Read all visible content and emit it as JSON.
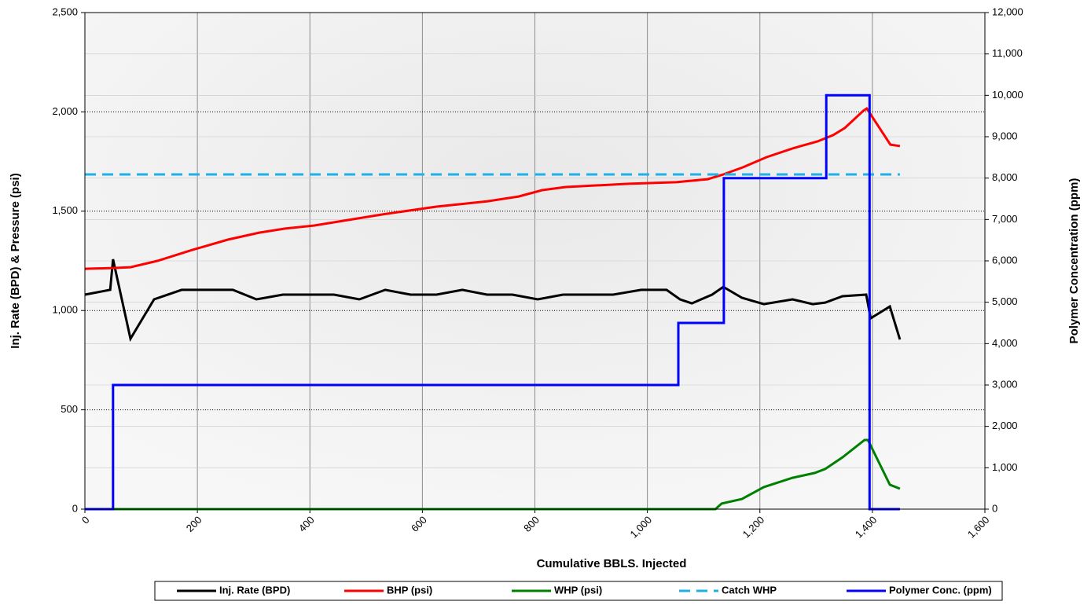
{
  "chart_data": {
    "type": "line",
    "xlabel": "Cumulative BBLS. Injected",
    "ylabel": "Inj. Rate (BPD) & Pressure (psi)",
    "y2label": "Polymer Concentration (ppm)",
    "xlim": [
      0,
      1600
    ],
    "xticks": [
      0,
      200,
      400,
      600,
      800,
      {
        "value": 1000,
        "label": "1,000"
      },
      {
        "value": 1200,
        "label": "1,200"
      },
      {
        "value": 1400,
        "label": "1,400"
      },
      {
        "value": 1600,
        "label": "1,600"
      }
    ],
    "ylim": [
      0,
      2500
    ],
    "yticks": [
      0,
      500,
      {
        "value": 1000,
        "label": "1,000"
      },
      {
        "value": 1500,
        "label": "1,500"
      },
      {
        "value": 2000,
        "label": "2,000"
      },
      {
        "value": 2500,
        "label": "2,500"
      }
    ],
    "y2lim": [
      0,
      12000
    ],
    "y2ticks": [
      0,
      {
        "value": 1000,
        "label": "1,000"
      },
      {
        "value": 2000,
        "label": "2,000"
      },
      {
        "value": 3000,
        "label": "3,000"
      },
      {
        "value": 4000,
        "label": "4,000"
      },
      {
        "value": 5000,
        "label": "5,000"
      },
      {
        "value": 6000,
        "label": "6,000"
      },
      {
        "value": 7000,
        "label": "7,000"
      },
      {
        "value": 8000,
        "label": "8,000"
      },
      {
        "value": 9000,
        "label": "9,000"
      },
      {
        "value": 10000,
        "label": "10,000"
      },
      {
        "value": 11000,
        "label": "11,000"
      },
      {
        "value": 12000,
        "label": "12,000"
      }
    ],
    "grid": true,
    "legend": "bottom",
    "series": [
      {
        "name": "Inj. Rate (BPD)",
        "color": "#000000",
        "x": [
          0,
          45,
          50,
          81,
          123,
          172,
          263,
          305,
          352,
          443,
          488,
          534,
          579,
          625,
          671,
          715,
          760,
          805,
          850,
          939,
          989,
          1034,
          1058,
          1079,
          1115,
          1135,
          1168,
          1207,
          1258,
          1294,
          1316,
          1347,
          1389,
          1397,
          1431,
          1449
        ],
        "values": [
          1080,
          1104,
          1258,
          858,
          1056,
          1104,
          1104,
          1056,
          1080,
          1080,
          1056,
          1104,
          1080,
          1080,
          1104,
          1080,
          1080,
          1056,
          1080,
          1080,
          1104,
          1104,
          1056,
          1036,
          1080,
          1119,
          1064,
          1032,
          1056,
          1032,
          1040,
          1072,
          1080,
          961,
          1020,
          854
        ]
      },
      {
        "name": "BHP (psi)",
        "color": "#ff0000",
        "x": [
          0,
          50,
          81,
          129,
          191,
          254,
          310,
          355,
          408,
          527,
          625,
          715,
          771,
          813,
          855,
          967,
          1051,
          1107,
          1135,
          1170,
          1212,
          1258,
          1302,
          1330,
          1351,
          1384,
          1390,
          1432,
          1449
        ],
        "values": [
          1210,
          1214,
          1218,
          1250,
          1305,
          1357,
          1392,
          1412,
          1428,
          1483,
          1523,
          1550,
          1574,
          1606,
          1622,
          1638,
          1646,
          1661,
          1685,
          1721,
          1772,
          1816,
          1851,
          1883,
          1919,
          2006,
          2017,
          1835,
          1828
        ]
      },
      {
        "name": "WHP (psi)",
        "color": "#008000",
        "x": [
          0,
          1121,
          1132,
          1168,
          1207,
          1258,
          1297,
          1316,
          1347,
          1386,
          1392,
          1431,
          1449
        ],
        "values": [
          0,
          0,
          28,
          51,
          111,
          158,
          182,
          202,
          261,
          348,
          348,
          123,
          103
        ]
      },
      {
        "name": "Catch WHP",
        "color": "#1fb0e6",
        "dash": true,
        "x": [
          0,
          1449
        ],
        "values": [
          1685,
          1685
        ]
      },
      {
        "name": "Polymer Conc. (ppm)",
        "color": "#0000ff",
        "axis": "y2",
        "x": [
          0,
          50,
          50,
          1055,
          1055,
          1136,
          1136,
          1318,
          1318,
          1395,
          1395,
          1449
        ],
        "values": [
          0,
          0,
          3000,
          3000,
          4500,
          4500,
          8000,
          8000,
          10000,
          10000,
          0,
          0
        ]
      }
    ]
  }
}
